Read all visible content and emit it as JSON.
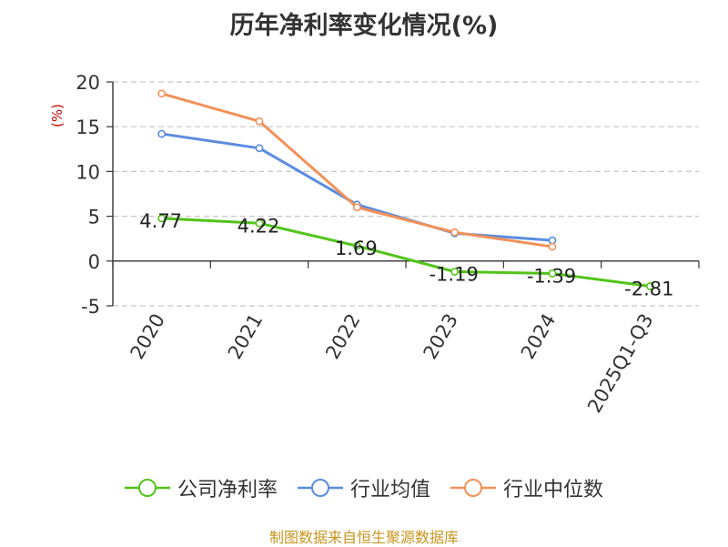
{
  "chart_data": {
    "type": "line",
    "title": "历年净利率变化情况(%)",
    "ylabel": "(%)",
    "categories": [
      "2020",
      "2021",
      "2022",
      "2023",
      "2024",
      "2025Q1-Q3"
    ],
    "yticks": [
      "20",
      "15",
      "10",
      "5",
      "0",
      "-5"
    ],
    "ylim": [
      -5,
      20
    ],
    "grid": true,
    "legend_position": "bottom",
    "series": [
      {
        "name": "公司净利率",
        "color": "#52c41a",
        "values": [
          4.77,
          4.22,
          1.69,
          -1.19,
          -1.39,
          -2.81
        ],
        "labels": [
          "4.77",
          "4.22",
          "1.69",
          "-1.19",
          "-1.39",
          "-2.81"
        ]
      },
      {
        "name": "行业均值",
        "color": "#5b8ce0",
        "values": [
          14.2,
          12.6,
          6.3,
          3.1,
          2.3,
          null
        ]
      },
      {
        "name": "行业中位数",
        "color": "#f39159",
        "values": [
          18.7,
          15.6,
          6.0,
          3.2,
          1.6,
          null
        ]
      }
    ]
  },
  "footer": {
    "source": "制图数据来自恒生聚源数据库"
  }
}
